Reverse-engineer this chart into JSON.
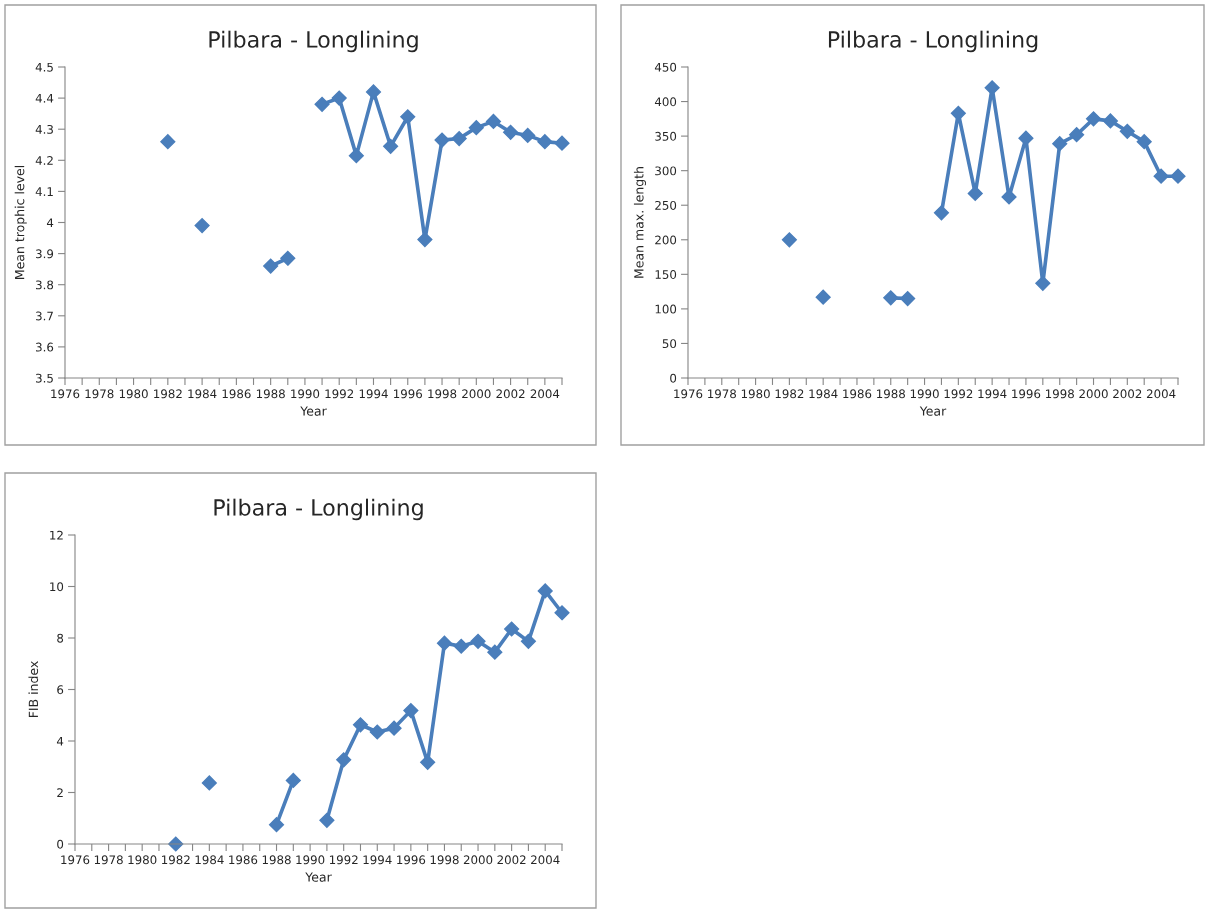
{
  "chart_data": [
    {
      "type": "line",
      "title": "Pilbara - Longlining",
      "xlabel": "Year",
      "ylabel": "Mean trophic level",
      "marker": "diamond",
      "line_style": "solid",
      "x": [
        1982,
        1983,
        1984,
        1985,
        1988,
        1989,
        1990,
        1991,
        1992,
        1993,
        1994,
        1995,
        1996,
        1997,
        1998,
        1999,
        2000,
        2001,
        2002,
        2003,
        2004,
        2005
      ],
      "series": [
        {
          "color": "#4a7ebb",
          "values": [
            4.26,
            null,
            3.99,
            null,
            3.86,
            3.885,
            null,
            4.38,
            4.4,
            4.215,
            4.42,
            4.245,
            4.34,
            3.945,
            4.265,
            4.27,
            4.305,
            4.325,
            4.29,
            4.28,
            4.26,
            4.255
          ]
        }
      ],
      "xlim": [
        1976,
        2005
      ],
      "ylim": [
        3.5,
        4.5
      ],
      "yticks": [
        3.5,
        3.6,
        3.7,
        3.8,
        3.9,
        {
          "value": 4,
          "label": "4"
        },
        4.1,
        4.2,
        4.3,
        4.4,
        4.5
      ],
      "xticks": [
        1976,
        {
          "value": 1977,
          "label": null
        },
        1978,
        {
          "value": 1979,
          "label": null
        },
        1980,
        {
          "value": 1981,
          "label": null
        },
        1982,
        {
          "value": 1983,
          "label": null
        },
        1984,
        {
          "value": 1985,
          "label": null
        },
        1986,
        {
          "value": 1987,
          "label": null
        },
        1988,
        {
          "value": 1989,
          "label": null
        },
        1990,
        {
          "value": 1991,
          "label": null
        },
        1992,
        {
          "value": 1993,
          "label": null
        },
        1994,
        {
          "value": 1995,
          "label": null
        },
        1996,
        {
          "value": 1997,
          "label": null
        },
        1998,
        {
          "value": 1999,
          "label": null
        },
        2000,
        {
          "value": 2001,
          "label": null
        },
        2002,
        {
          "value": 2003,
          "label": null
        },
        2004,
        {
          "value": 2005,
          "label": null
        }
      ]
    },
    {
      "type": "line",
      "title": "Pilbara - Longlining",
      "xlabel": "Year",
      "ylabel": "Mean max. length",
      "marker": "diamond",
      "line_style": "solid",
      "x": [
        1982,
        1983,
        1984,
        1985,
        1988,
        1989,
        1990,
        1991,
        1992,
        1993,
        1994,
        1995,
        1996,
        1997,
        1998,
        1999,
        2000,
        2001,
        2002,
        2003,
        2004,
        2005
      ],
      "series": [
        {
          "color": "#4a7ebb",
          "values": [
            200,
            null,
            117,
            null,
            116,
            115,
            null,
            239,
            383,
            267,
            420,
            262,
            347,
            137,
            339,
            352,
            375,
            372,
            357,
            342,
            292,
            292
          ]
        }
      ],
      "xlim": [
        1976,
        2005
      ],
      "ylim": [
        0,
        450
      ],
      "yticks": [
        0,
        50,
        100,
        150,
        200,
        250,
        300,
        350,
        400,
        450
      ],
      "xticks": [
        1976,
        {
          "value": 1977,
          "label": null
        },
        1978,
        {
          "value": 1979,
          "label": null
        },
        1980,
        {
          "value": 1981,
          "label": null
        },
        1982,
        {
          "value": 1983,
          "label": null
        },
        1984,
        {
          "value": 1985,
          "label": null
        },
        1986,
        {
          "value": 1987,
          "label": null
        },
        1988,
        {
          "value": 1989,
          "label": null
        },
        1990,
        {
          "value": 1991,
          "label": null
        },
        1992,
        {
          "value": 1993,
          "label": null
        },
        1994,
        {
          "value": 1995,
          "label": null
        },
        1996,
        {
          "value": 1997,
          "label": null
        },
        1998,
        {
          "value": 1999,
          "label": null
        },
        2000,
        {
          "value": 2001,
          "label": null
        },
        2002,
        {
          "value": 2003,
          "label": null
        },
        2004,
        {
          "value": 2005,
          "label": null
        }
      ]
    },
    {
      "type": "line",
      "title": "Pilbara - Longlining",
      "xlabel": "Year",
      "ylabel": "FIB index",
      "marker": "diamond",
      "line_style": "solid",
      "x": [
        1982,
        1983,
        1984,
        1985,
        1988,
        1989,
        1990,
        1991,
        1992,
        1993,
        1994,
        1995,
        1996,
        1997,
        1998,
        1999,
        2000,
        2001,
        2002,
        2003,
        2004,
        2005
      ],
      "series": [
        {
          "color": "#4a7ebb",
          "values": [
            0,
            null,
            2.37,
            null,
            0.75,
            2.47,
            null,
            0.92,
            3.27,
            4.63,
            4.35,
            4.5,
            5.18,
            3.17,
            7.8,
            7.68,
            7.87,
            7.45,
            8.35,
            7.87,
            9.83,
            8.98
          ]
        }
      ],
      "xlim": [
        1976,
        2005
      ],
      "ylim": [
        0,
        12
      ],
      "yticks": [
        0,
        2,
        4,
        6,
        8,
        10,
        12
      ],
      "xticks": [
        1976,
        {
          "value": 1977,
          "label": null
        },
        1978,
        {
          "value": 1979,
          "label": null
        },
        1980,
        {
          "value": 1981,
          "label": null
        },
        1982,
        {
          "value": 1983,
          "label": null
        },
        1984,
        {
          "value": 1985,
          "label": null
        },
        1986,
        {
          "value": 1987,
          "label": null
        },
        1988,
        {
          "value": 1989,
          "label": null
        },
        1990,
        {
          "value": 1991,
          "label": null
        },
        1992,
        {
          "value": 1993,
          "label": null
        },
        1994,
        {
          "value": 1995,
          "label": null
        },
        1996,
        {
          "value": 1997,
          "label": null
        },
        1998,
        {
          "value": 1999,
          "label": null
        },
        2000,
        {
          "value": 2001,
          "label": null
        },
        2002,
        {
          "value": 2003,
          "label": null
        },
        2004,
        {
          "value": 2005,
          "label": null
        }
      ]
    }
  ]
}
